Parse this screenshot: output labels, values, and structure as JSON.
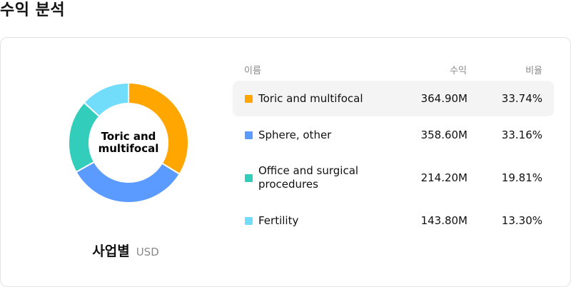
{
  "page": {
    "title": "수익 분석"
  },
  "chart": {
    "center_label": "Toric and multifocal",
    "caption_label": "사업별",
    "caption_unit": "USD"
  },
  "table": {
    "headers": {
      "name": "이름",
      "revenue": "수익",
      "share": "비율"
    },
    "rows": [
      {
        "name": "Toric and multifocal",
        "revenue": "364.90M",
        "share": "33.74%",
        "color": "#FFA600",
        "active": true
      },
      {
        "name": "Sphere, other",
        "revenue": "358.60M",
        "share": "33.16%",
        "color": "#5B9BFF",
        "active": false
      },
      {
        "name": "Office and surgical procedures",
        "revenue": "214.20M",
        "share": "19.81%",
        "color": "#33CEBB",
        "active": false
      },
      {
        "name": "Fertility",
        "revenue": "143.80M",
        "share": "13.30%",
        "color": "#72DDFA",
        "active": false
      }
    ]
  },
  "chart_data": {
    "type": "pie",
    "categories": [
      "Toric and multifocal",
      "Sphere, other",
      "Office and surgical procedures",
      "Fertility"
    ],
    "values": [
      364.9,
      358.6,
      214.2,
      143.8
    ],
    "colors": [
      "#FFA600",
      "#5B9BFF",
      "#33CEBB",
      "#72DDFA"
    ],
    "title": "",
    "unit": "USD"
  }
}
